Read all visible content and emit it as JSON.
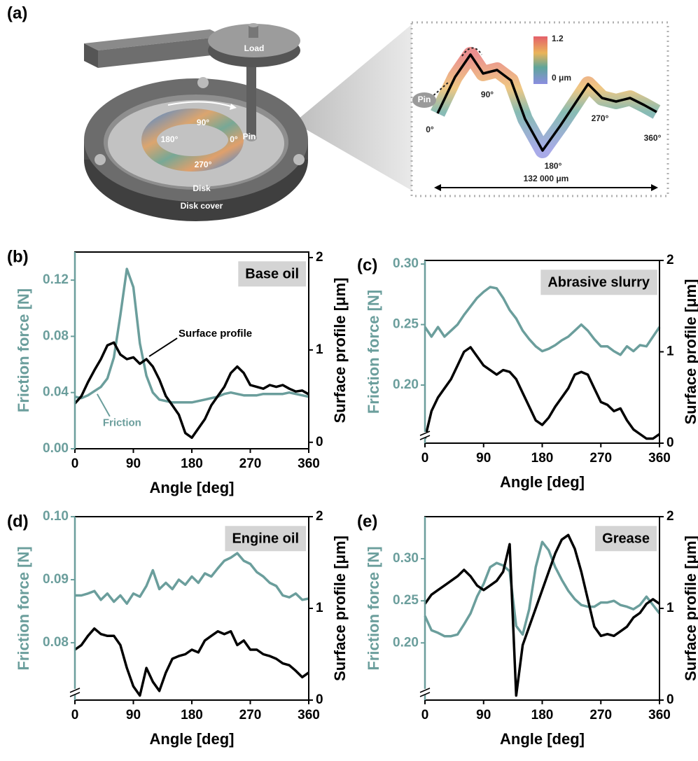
{
  "illustration": {
    "panel": "(a)",
    "load": "Load",
    "pin": "Pin",
    "disk_angles": [
      "90°",
      "180°",
      "0°",
      "270°"
    ],
    "disk": "Disk",
    "disk_cover": "Disk cover",
    "colorbar": [
      "1.2",
      "0 μm"
    ],
    "profile_pin": "Pin",
    "profile_angles": [
      "0°",
      "90°",
      "180°",
      "270°",
      "360°"
    ],
    "length": "132 000 μm"
  },
  "chart_data": [
    {
      "type": "line",
      "panel": "(b)",
      "title": "Base oil",
      "x_label": "Angle [deg]",
      "y_label": "Friction force [N]",
      "y2_label": "Surface profile [μm]",
      "axis_break": false,
      "x": [
        0,
        10,
        20,
        30,
        40,
        50,
        60,
        70,
        80,
        90,
        100,
        110,
        120,
        130,
        140,
        150,
        160,
        170,
        180,
        190,
        200,
        210,
        220,
        230,
        240,
        250,
        260,
        270,
        280,
        290,
        300,
        310,
        320,
        330,
        340,
        350,
        360
      ],
      "xlim": [
        0,
        360
      ],
      "xticks": [
        0,
        90,
        180,
        270,
        360
      ],
      "ylim": [
        0,
        0.14
      ],
      "yticks": [
        {
          "value": 0,
          "label": "0.00"
        },
        0.04,
        0.08,
        0.12
      ],
      "y2lim": [
        -0.07,
        2.06
      ],
      "y2ticks": [
        0,
        1,
        2
      ],
      "series": [
        {
          "name": "Friction",
          "color": "#6b9e9c",
          "values": [
            0.037,
            0.036,
            0.038,
            0.041,
            0.044,
            0.05,
            0.065,
            0.095,
            0.128,
            0.115,
            0.075,
            0.052,
            0.04,
            0.035,
            0.034,
            0.033,
            0.033,
            0.033,
            0.033,
            0.034,
            0.035,
            0.036,
            0.037,
            0.039,
            0.04,
            0.039,
            0.038,
            0.038,
            0.038,
            0.039,
            0.039,
            0.039,
            0.039,
            0.04,
            0.039,
            0.038,
            0.037
          ]
        },
        {
          "name": "Surface profile",
          "color": "#000000",
          "axis": "y2",
          "values": [
            0.42,
            0.5,
            0.65,
            0.78,
            0.9,
            1.05,
            1.08,
            0.95,
            0.9,
            0.92,
            0.85,
            0.9,
            0.82,
            0.68,
            0.5,
            0.4,
            0.3,
            0.1,
            0.05,
            0.15,
            0.25,
            0.4,
            0.5,
            0.6,
            0.75,
            0.82,
            0.75,
            0.62,
            0.6,
            0.58,
            0.62,
            0.6,
            0.62,
            0.58,
            0.55,
            0.56,
            0.52
          ]
        }
      ]
    },
    {
      "type": "line",
      "panel": "(c)",
      "title": "Abrasive slurry",
      "x_label": "Angle [deg]",
      "y_label": "Friction force [N]",
      "y2_label": "Surface profile [μm]",
      "axis_break": true,
      "x": [
        0,
        10,
        20,
        30,
        40,
        50,
        60,
        70,
        80,
        90,
        100,
        110,
        120,
        130,
        140,
        150,
        160,
        170,
        180,
        190,
        200,
        210,
        220,
        230,
        240,
        250,
        260,
        270,
        280,
        290,
        300,
        310,
        320,
        330,
        340,
        350,
        360
      ],
      "xlim": [
        0,
        360
      ],
      "xticks": [
        0,
        90,
        180,
        270,
        360
      ],
      "ylim": [
        0.152,
        0.303
      ],
      "yticks": [
        {
          "value": 0.2,
          "label": "0.20"
        },
        0.25,
        {
          "value": 0.3,
          "label": "0.30"
        }
      ],
      "y2lim": [
        0,
        2
      ],
      "y2ticks": [
        0,
        1,
        2
      ],
      "series": [
        {
          "color": "#6b9e9c",
          "values": [
            0.248,
            0.24,
            0.248,
            0.24,
            0.245,
            0.25,
            0.258,
            0.265,
            0.272,
            0.277,
            0.281,
            0.28,
            0.272,
            0.262,
            0.255,
            0.245,
            0.238,
            0.232,
            0.228,
            0.23,
            0.233,
            0.237,
            0.24,
            0.245,
            0.25,
            0.245,
            0.238,
            0.232,
            0.232,
            0.228,
            0.225,
            0.232,
            0.228,
            0.233,
            0.232,
            0.24,
            0.248
          ]
        },
        {
          "color": "#000000",
          "axis": "y2",
          "values": [
            0.05,
            0.35,
            0.5,
            0.6,
            0.7,
            0.85,
            1.0,
            1.05,
            0.95,
            0.85,
            0.8,
            0.75,
            0.8,
            0.78,
            0.7,
            0.55,
            0.4,
            0.25,
            0.2,
            0.28,
            0.4,
            0.5,
            0.6,
            0.75,
            0.78,
            0.75,
            0.6,
            0.45,
            0.42,
            0.35,
            0.38,
            0.25,
            0.15,
            0.1,
            0.05,
            0.05,
            0.1
          ]
        }
      ]
    },
    {
      "type": "line",
      "panel": "(d)",
      "title": "Engine oil",
      "x_label": "Angle [deg]",
      "y_label": "Friction force [N]",
      "y2_label": "Surface profile [μm]",
      "axis_break": true,
      "x": [
        0,
        10,
        20,
        30,
        40,
        50,
        60,
        70,
        80,
        90,
        100,
        110,
        120,
        130,
        140,
        150,
        160,
        170,
        180,
        190,
        200,
        210,
        220,
        230,
        240,
        250,
        260,
        270,
        280,
        290,
        300,
        310,
        320,
        330,
        340,
        350,
        360
      ],
      "xlim": [
        0,
        360
      ],
      "xticks": [
        0,
        90,
        180,
        270,
        360
      ],
      "ylim": [
        0.0709,
        0.1
      ],
      "yticks": [
        0.08,
        0.09,
        {
          "value": 0.1,
          "label": "0.10"
        }
      ],
      "y2lim": [
        0,
        2
      ],
      "y2ticks": [
        0,
        1,
        2
      ],
      "series": [
        {
          "color": "#6b9e9c",
          "values": [
            0.0875,
            0.0875,
            0.0878,
            0.0882,
            0.0868,
            0.0878,
            0.0865,
            0.0875,
            0.0862,
            0.0878,
            0.0873,
            0.089,
            0.0915,
            0.0885,
            0.0895,
            0.0885,
            0.09,
            0.0892,
            0.0905,
            0.0895,
            0.091,
            0.0905,
            0.0918,
            0.093,
            0.0935,
            0.0942,
            0.093,
            0.0925,
            0.0912,
            0.0905,
            0.0895,
            0.089,
            0.0875,
            0.0872,
            0.0878,
            0.0868,
            0.087
          ]
        },
        {
          "color": "#000000",
          "axis": "y2",
          "values": [
            0.55,
            0.6,
            0.7,
            0.78,
            0.72,
            0.7,
            0.7,
            0.6,
            0.35,
            0.15,
            0.05,
            0.35,
            0.2,
            0.1,
            0.3,
            0.45,
            0.48,
            0.5,
            0.55,
            0.52,
            0.65,
            0.7,
            0.75,
            0.72,
            0.75,
            0.6,
            0.65,
            0.55,
            0.55,
            0.5,
            0.48,
            0.45,
            0.4,
            0.38,
            0.32,
            0.25,
            0.3
          ]
        }
      ]
    },
    {
      "type": "line",
      "panel": "(e)",
      "title": "Grease",
      "x_label": "Angle [deg]",
      "y_label": "Friction force [N]",
      "y2_label": "Surface profile [μm]",
      "axis_break": true,
      "x": [
        0,
        10,
        20,
        30,
        40,
        50,
        60,
        70,
        80,
        90,
        100,
        110,
        120,
        130,
        140,
        150,
        160,
        170,
        180,
        190,
        200,
        210,
        220,
        230,
        240,
        250,
        260,
        270,
        280,
        290,
        300,
        310,
        320,
        330,
        340,
        350,
        360
      ],
      "xlim": [
        0,
        360
      ],
      "xticks": [
        0,
        90,
        180,
        270,
        360
      ],
      "ylim": [
        0.132,
        0.35
      ],
      "yticks": [
        {
          "value": 0.2,
          "label": "0.20"
        },
        0.25,
        {
          "value": 0.3,
          "label": "0.30"
        }
      ],
      "y2lim": [
        0,
        2
      ],
      "y2ticks": [
        0,
        1,
        2
      ],
      "series": [
        {
          "color": "#6b9e9c",
          "values": [
            0.232,
            0.215,
            0.212,
            0.208,
            0.208,
            0.21,
            0.222,
            0.235,
            0.255,
            0.27,
            0.29,
            0.295,
            0.292,
            0.285,
            0.22,
            0.21,
            0.24,
            0.29,
            0.32,
            0.31,
            0.29,
            0.275,
            0.262,
            0.252,
            0.245,
            0.243,
            0.243,
            0.248,
            0.248,
            0.25,
            0.245,
            0.243,
            0.24,
            0.245,
            0.255,
            0.245,
            0.235
          ]
        },
        {
          "color": "#000000",
          "axis": "y2",
          "values": [
            1.05,
            1.15,
            1.2,
            1.25,
            1.3,
            1.35,
            1.42,
            1.35,
            1.25,
            1.2,
            1.25,
            1.3,
            1.4,
            1.7,
            0.05,
            0.6,
            0.8,
            1.0,
            1.2,
            1.4,
            1.6,
            1.75,
            1.8,
            1.65,
            1.4,
            1.1,
            0.8,
            0.7,
            0.72,
            0.7,
            0.75,
            0.8,
            0.9,
            0.95,
            1.05,
            1.1,
            1.05
          ]
        }
      ]
    }
  ]
}
